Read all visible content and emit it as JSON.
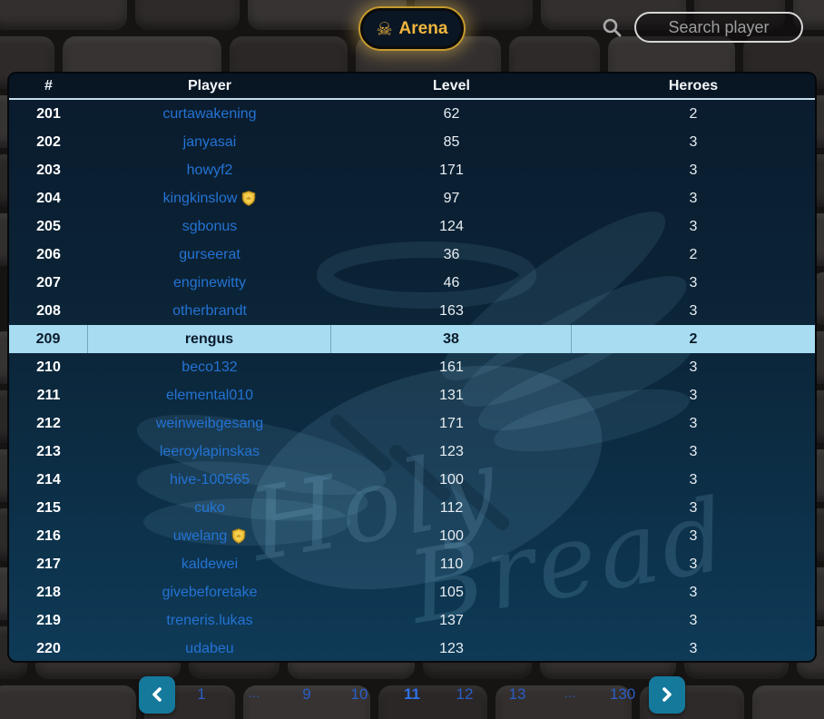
{
  "topbar": {
    "arena_button": {
      "label": "Arena",
      "icon": "skull-crossbones-icon"
    },
    "search": {
      "placeholder": "Search player",
      "value": "",
      "icon": "search-icon"
    }
  },
  "watermark": {
    "line1": "Holy",
    "line2": "Bread"
  },
  "table": {
    "columns": [
      "#",
      "Player",
      "Level",
      "Heroes"
    ],
    "rows": [
      {
        "rank": "201",
        "player": "curtawakening",
        "badge": false,
        "level": "62",
        "heroes": "2",
        "highlighted": false
      },
      {
        "rank": "202",
        "player": "janyasai",
        "badge": false,
        "level": "85",
        "heroes": "3",
        "highlighted": false
      },
      {
        "rank": "203",
        "player": "howyf2",
        "badge": false,
        "level": "171",
        "heroes": "3",
        "highlighted": false
      },
      {
        "rank": "204",
        "player": "kingkinslow",
        "badge": true,
        "level": "97",
        "heroes": "3",
        "highlighted": false
      },
      {
        "rank": "205",
        "player": "sgbonus",
        "badge": false,
        "level": "124",
        "heroes": "3",
        "highlighted": false
      },
      {
        "rank": "206",
        "player": "gurseerat",
        "badge": false,
        "level": "36",
        "heroes": "2",
        "highlighted": false
      },
      {
        "rank": "207",
        "player": "enginewitty",
        "badge": false,
        "level": "46",
        "heroes": "3",
        "highlighted": false
      },
      {
        "rank": "208",
        "player": "otherbrandt",
        "badge": false,
        "level": "163",
        "heroes": "3",
        "highlighted": false
      },
      {
        "rank": "209",
        "player": "rengus",
        "badge": false,
        "level": "38",
        "heroes": "2",
        "highlighted": true
      },
      {
        "rank": "210",
        "player": "beco132",
        "badge": false,
        "level": "161",
        "heroes": "3",
        "highlighted": false
      },
      {
        "rank": "211",
        "player": "elemental010",
        "badge": false,
        "level": "131",
        "heroes": "3",
        "highlighted": false
      },
      {
        "rank": "212",
        "player": "weinweibgesang",
        "badge": false,
        "level": "171",
        "heroes": "3",
        "highlighted": false
      },
      {
        "rank": "213",
        "player": "leeroylapinskas",
        "badge": false,
        "level": "123",
        "heroes": "3",
        "highlighted": false
      },
      {
        "rank": "214",
        "player": "hive-100565",
        "badge": false,
        "level": "100",
        "heroes": "3",
        "highlighted": false
      },
      {
        "rank": "215",
        "player": "cuko",
        "badge": false,
        "level": "112",
        "heroes": "3",
        "highlighted": false
      },
      {
        "rank": "216",
        "player": "uwelang",
        "badge": true,
        "level": "100",
        "heroes": "3",
        "highlighted": false
      },
      {
        "rank": "217",
        "player": "kaldewei",
        "badge": false,
        "level": "110",
        "heroes": "3",
        "highlighted": false
      },
      {
        "rank": "218",
        "player": "givebeforetake",
        "badge": false,
        "level": "105",
        "heroes": "3",
        "highlighted": false
      },
      {
        "rank": "219",
        "player": "treneris.lukas",
        "badge": false,
        "level": "137",
        "heroes": "3",
        "highlighted": false
      },
      {
        "rank": "220",
        "player": "udabeu",
        "badge": false,
        "level": "123",
        "heroes": "3",
        "highlighted": false
      }
    ]
  },
  "pagination": {
    "prev_icon": "chevron-left-icon",
    "next_icon": "chevron-right-icon",
    "pages": [
      {
        "label": "1",
        "current": false,
        "ellipsis": false
      },
      {
        "label": "...",
        "current": false,
        "ellipsis": true
      },
      {
        "label": "9",
        "current": false,
        "ellipsis": false
      },
      {
        "label": "10",
        "current": false,
        "ellipsis": false
      },
      {
        "label": "11",
        "current": true,
        "ellipsis": false
      },
      {
        "label": "12",
        "current": false,
        "ellipsis": false
      },
      {
        "label": "13",
        "current": false,
        "ellipsis": false
      },
      {
        "label": "...",
        "current": false,
        "ellipsis": true
      },
      {
        "label": "130",
        "current": false,
        "ellipsis": false
      }
    ]
  },
  "colors": {
    "player_link": "#2473d4",
    "highlight_row_bg": "#a7dcf1",
    "pager_button": "#15799c",
    "gold_accent": "#f2b63d",
    "page_number_blue": "#2a5ec6",
    "board_bg_top": "#0a1b2d",
    "board_bg_bottom": "#0e3a57"
  }
}
